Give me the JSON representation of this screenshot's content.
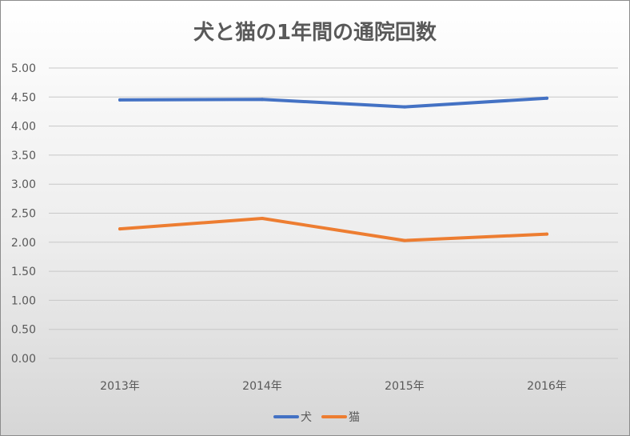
{
  "chart_data": {
    "type": "line",
    "title": "犬と猫の1年間の通院回数",
    "categories": [
      "2013年",
      "2014年",
      "2015年",
      "2016年"
    ],
    "y_ticks": [
      "0.00",
      "0.50",
      "1.00",
      "1.50",
      "2.00",
      "2.50",
      "3.00",
      "3.50",
      "4.00",
      "4.50",
      "5.00"
    ],
    "ylim": [
      0,
      5
    ],
    "grid": true,
    "legend_position": "bottom",
    "series": [
      {
        "name": "犬",
        "color": "#4472C4",
        "values": [
          4.45,
          4.46,
          4.33,
          4.48
        ]
      },
      {
        "name": "猫",
        "color": "#ED7D31",
        "values": [
          2.23,
          2.41,
          2.03,
          2.14
        ]
      }
    ]
  }
}
